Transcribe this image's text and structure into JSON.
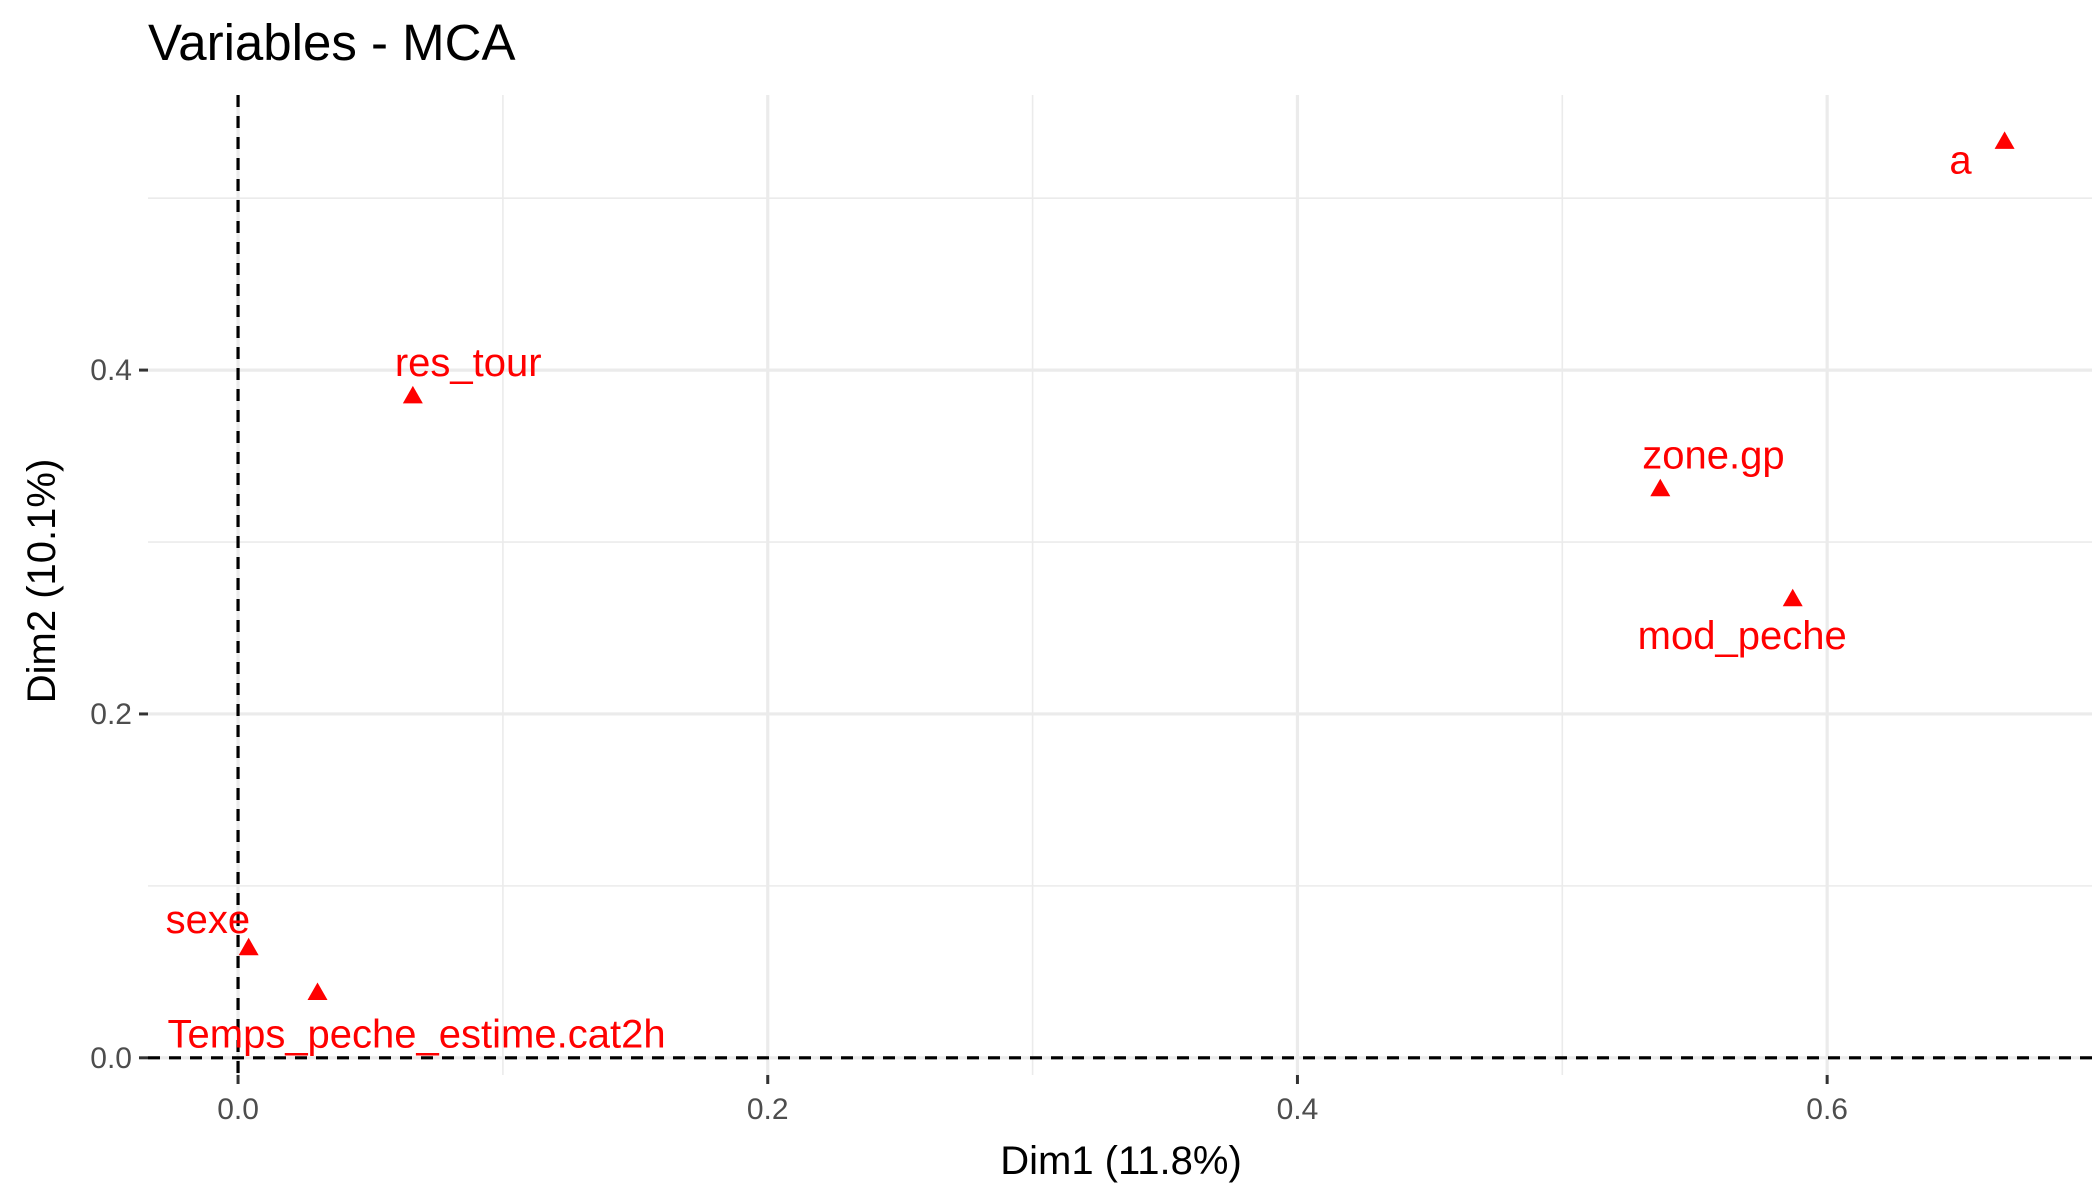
{
  "chart_data": {
    "type": "scatter",
    "title": "Variables - MCA",
    "xlabel": "Dim1 (11.8%)",
    "ylabel": "Dim2 (10.1%)",
    "xlim": [
      -0.034,
      0.7
    ],
    "ylim": [
      -0.01,
      0.56
    ],
    "x_ticks": [
      0.0,
      0.2,
      0.4,
      0.6
    ],
    "x_tick_labels": [
      "0.0",
      "0.2",
      "0.4",
      "0.6"
    ],
    "y_ticks": [
      0.0,
      0.2,
      0.4
    ],
    "y_tick_labels": [
      "0.0",
      "0.2",
      "0.4"
    ],
    "x_minor_ticks": [
      0.1,
      0.3,
      0.5
    ],
    "y_minor_ticks": [
      0.1,
      0.3,
      0.5
    ],
    "grid": true,
    "reference_lines": {
      "x": 0,
      "y": 0,
      "style": "dashed"
    },
    "marker": "triangle",
    "color": "#ff0000",
    "points": [
      {
        "label": "a",
        "x": 0.667,
        "y": 0.533,
        "label_pos": "bottom-left"
      },
      {
        "label": "res_tour",
        "x": 0.066,
        "y": 0.385,
        "label_pos": "top-right"
      },
      {
        "label": "zone.gp",
        "x": 0.537,
        "y": 0.331,
        "label_pos": "top-right"
      },
      {
        "label": "mod_peche",
        "x": 0.587,
        "y": 0.267,
        "label_pos": "bottom-left"
      },
      {
        "label": "sexe",
        "x": 0.004,
        "y": 0.064,
        "label_pos": "top-left"
      },
      {
        "label": "Temps_peche_estime.cat2h",
        "x": 0.03,
        "y": 0.038,
        "label_pos": "bottom-right"
      }
    ]
  }
}
